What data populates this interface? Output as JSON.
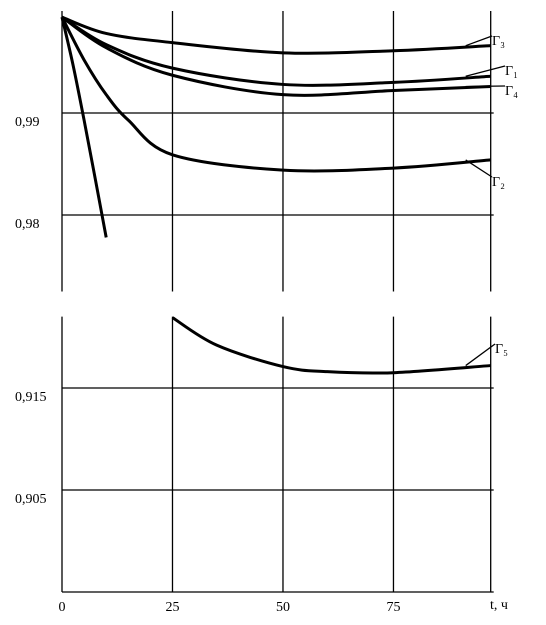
{
  "chart_data": [
    {
      "type": "line",
      "xlim": [
        0,
        97
      ],
      "xticks": [
        25,
        50,
        75
      ],
      "ylim": [
        0.9725,
        1.0
      ],
      "yticks": [
        {
          "value": 0.99,
          "label": "0,99"
        },
        {
          "value": 0.98,
          "label": "0,98"
        }
      ],
      "grid": true,
      "series": [
        {
          "name": "Г₃",
          "color": "#000000",
          "x": [
            0,
            10,
            25,
            50,
            75,
            97
          ],
          "values": [
            0.9994,
            0.9978,
            0.9969,
            0.9959,
            0.9961,
            0.9966
          ]
        },
        {
          "name": "Г₁",
          "color": "#000000",
          "x": [
            0,
            10,
            25,
            50,
            75,
            97
          ],
          "values": [
            0.9994,
            0.9967,
            0.9944,
            0.9928,
            0.993,
            0.9936
          ]
        },
        {
          "name": "Г₄",
          "color": "#000000",
          "x": [
            0,
            10,
            25,
            50,
            75,
            97
          ],
          "values": [
            0.9994,
            0.9964,
            0.9937,
            0.9918,
            0.9922,
            0.9926
          ]
        },
        {
          "name": "Г₂",
          "color": "#000000",
          "x": [
            0,
            5,
            10,
            15,
            25,
            50,
            75,
            97
          ],
          "values": [
            0.9994,
            0.9952,
            0.9918,
            0.9893,
            0.9859,
            0.9844,
            0.9846,
            0.9854
          ]
        },
        {
          "color": "#000000",
          "x": [
            0,
            2.5,
            5,
            7.5,
            10
          ],
          "values": [
            0.9994,
            0.9947,
            0.9893,
            0.9836,
            0.9778
          ]
        }
      ]
    },
    {
      "type": "line",
      "xlim": [
        0,
        97
      ],
      "xticks": [
        0,
        25,
        50,
        75
      ],
      "xlabel": "t, ч",
      "ylim": [
        0.895,
        0.922
      ],
      "yticks": [
        {
          "value": 0.915,
          "label": "0,915"
        },
        {
          "value": 0.905,
          "label": "0,905"
        }
      ],
      "grid": true,
      "series": [
        {
          "name": "Г₅",
          "color": "#000000",
          "x": [
            25,
            35,
            50,
            60,
            75,
            97
          ],
          "values": [
            0.9219,
            0.9192,
            0.9171,
            0.9166,
            0.9165,
            0.9172
          ]
        }
      ]
    }
  ]
}
